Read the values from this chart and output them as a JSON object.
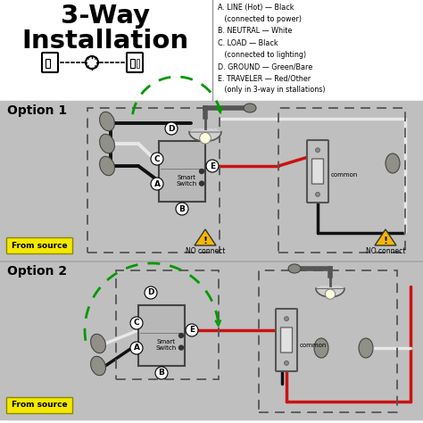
{
  "title_line1": "3-Way",
  "title_line2": "Installation",
  "bg_color": "#c8c8c8",
  "white_bg": "#ffffff",
  "legend_text": "A. LINE (Hot) — Black\n   (connected to power)\nB. NEUTRAL — White\nC. LOAD — Black\n   (connected to lighting)\nD. GROUND — Green/Bare\nE. TRAVELER — Red/Other\n   (only in 3-way in stallations)",
  "option1_label": "Option 1",
  "option2_label": "Option 2",
  "from_source_color": "#f5e800",
  "from_source_text": "From source",
  "no_connect_text": "NO connect",
  "warning_color": "#f5b800",
  "smart_switch_text": "Smart\nSwitch",
  "common_text": "common",
  "red": "#cc1111",
  "black": "#111111",
  "white_wire": "#e8e8e8",
  "green": "#009900",
  "gray_panel": "#c0bfbf",
  "dashed_color": "#555555",
  "connector_color": "#888880",
  "switch_body": "#b0b0b0",
  "switch_face": "#d8d8d8"
}
